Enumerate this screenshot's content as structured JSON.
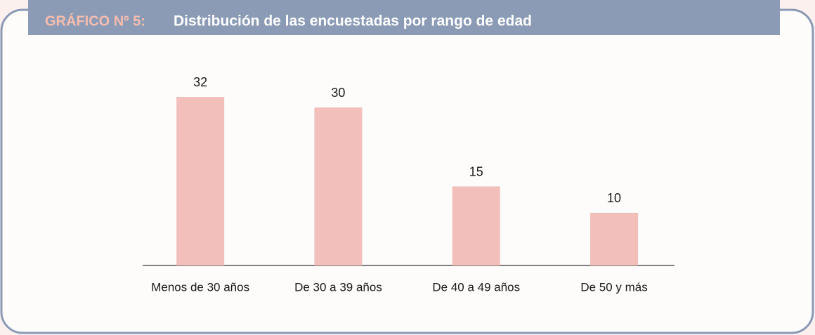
{
  "chart_data": {
    "type": "bar",
    "label": "GRÁFICO Nº 5:",
    "title": "Distribución de las encuestadas por rango de edad",
    "categories": [
      "Menos de 30 años",
      "De 30 a 39 años",
      "De 40 a 49 años",
      "De 50 y más"
    ],
    "values": [
      32,
      30,
      15,
      10
    ],
    "color": "#f2bfbb"
  }
}
